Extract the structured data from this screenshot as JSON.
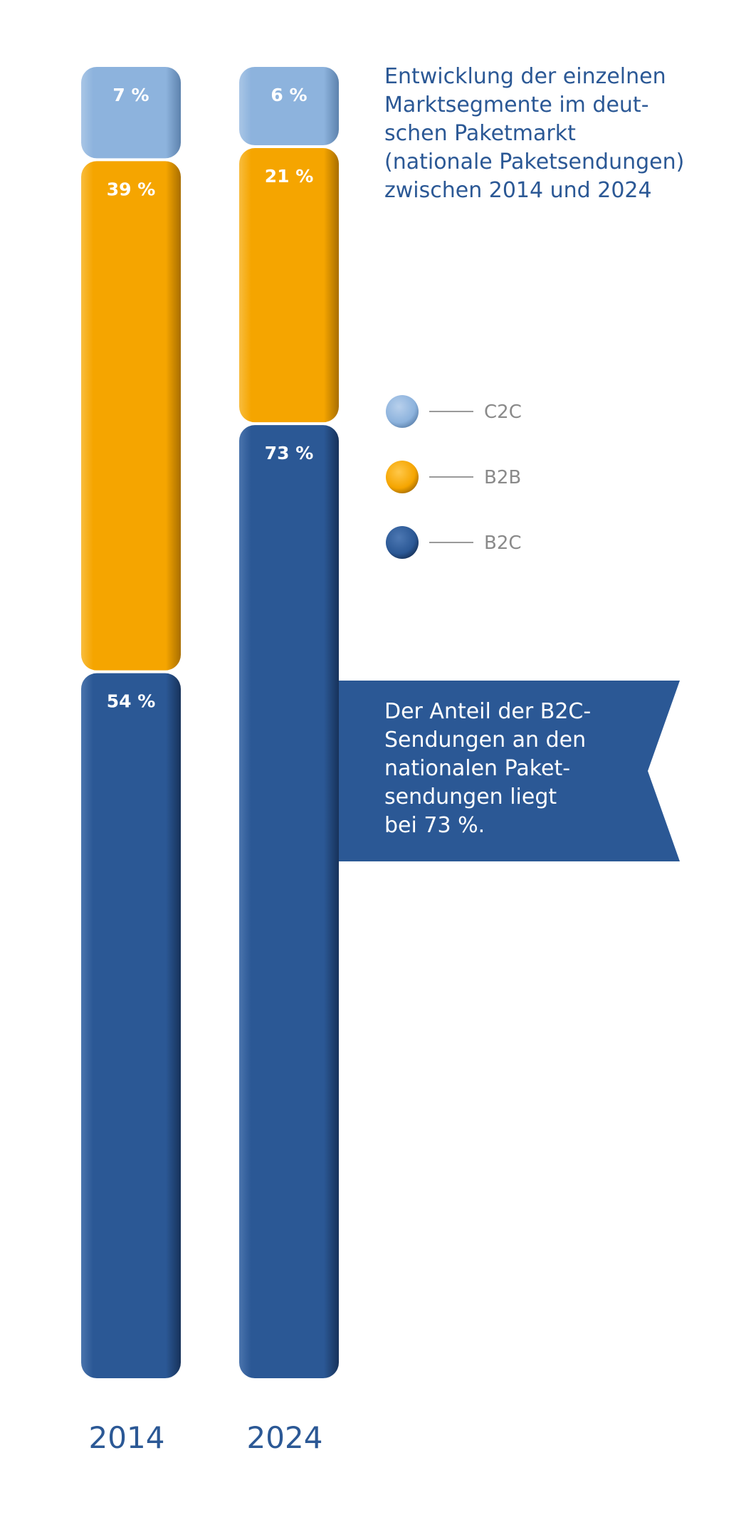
{
  "title_lines": [
    "Entwicklung der einzelnen",
    "Marktsegmente im deut-",
    "schen Paketmarkt",
    "(nationale Paketsendungen)",
    "zwischen 2014 und 2024"
  ],
  "callout_lines": [
    "Der Anteil der B2C-",
    "Sendungen an den",
    "nationalen Paket-",
    "sendungen liegt",
    "bei 73 %."
  ],
  "colors": {
    "C2C": "#8db3dd",
    "B2B": "#f5a500",
    "B2C": "#2b5895",
    "callout": "#2b5895",
    "legend_line": "#9a9a9a"
  },
  "chart_data": {
    "type": "bar",
    "stacked": true,
    "unit": "%",
    "categories": [
      "2014",
      "2024"
    ],
    "series": [
      {
        "name": "C2C",
        "values": [
          7,
          6
        ],
        "labels": [
          "7 %",
          "6 %"
        ]
      },
      {
        "name": "B2B",
        "values": [
          39,
          21
        ],
        "labels": [
          "39 %",
          "21 %"
        ]
      },
      {
        "name": "B2C",
        "values": [
          54,
          73
        ],
        "labels": [
          "54 %",
          "73 %"
        ]
      }
    ],
    "legend": {
      "placement": "right",
      "order": [
        "C2C",
        "B2B",
        "B2C"
      ]
    }
  }
}
